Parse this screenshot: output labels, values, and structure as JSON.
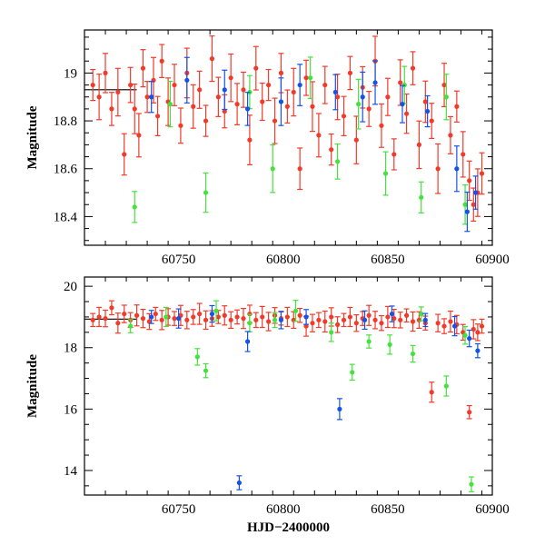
{
  "chart_data": [
    {
      "type": "scatter",
      "title": "",
      "xlabel": "",
      "ylabel": "Magnitude",
      "xlim": [
        60705,
        60900
      ],
      "ylim": [
        19.18,
        18.28
      ],
      "y_inverted": true,
      "xticks": [
        60750,
        60800,
        60850,
        60900
      ],
      "yticks": [
        18.4,
        18.6,
        18.8,
        19
      ],
      "grid": false,
      "colors": {
        "red": "#f23a2a",
        "green": "#44e23c",
        "blue": "#1453e8",
        "black": "#000000"
      },
      "reference_line": {
        "color": "black",
        "x": [
          60705,
          60730
        ],
        "y": 18.93
      },
      "series": [
        {
          "color": "red",
          "x": [
            60709,
            60712,
            60715,
            60718,
            60721,
            60724,
            60727,
            60729,
            60731,
            60733,
            60735,
            60738,
            60740,
            60742,
            60745,
            60748,
            60751,
            60754,
            60757,
            60760,
            60763,
            60766,
            60769,
            60772,
            60775,
            60778,
            60781,
            60784,
            60787,
            60790,
            60793,
            60796,
            60799,
            60802,
            60805,
            60808,
            60811,
            60814,
            60817,
            60820,
            60823,
            60826,
            60829,
            60832,
            60835,
            60838,
            60841,
            60844,
            60847,
            60850,
            60853,
            60856,
            60859,
            60862,
            60865,
            60868,
            60871,
            60874,
            60877,
            60880,
            60883,
            60886,
            60889,
            60891,
            60893,
            60895
          ],
          "y": [
            18.95,
            18.9,
            19.0,
            18.85,
            18.92,
            18.66,
            18.95,
            18.85,
            18.74,
            19.02,
            18.9,
            18.97,
            18.82,
            19.05,
            18.88,
            18.95,
            18.78,
            19.0,
            18.86,
            18.93,
            18.8,
            19.06,
            18.9,
            18.84,
            18.98,
            18.87,
            18.93,
            18.72,
            19.02,
            18.88,
            18.95,
            18.8,
            19.0,
            18.86,
            18.92,
            18.6,
            18.98,
            18.86,
            18.74,
            18.95,
            18.68,
            18.9,
            18.82,
            19.0,
            18.72,
            18.94,
            18.85,
            19.05,
            18.78,
            18.9,
            18.66,
            18.96,
            18.83,
            19.02,
            18.7,
            18.88,
            18.8,
            18.6,
            18.95,
            18.74,
            18.86,
            18.66,
            18.55,
            18.45,
            18.5,
            18.58
          ]
        },
        {
          "color": "green",
          "x": [
            60729,
            60746,
            60763,
            60784,
            60795,
            60813,
            60826,
            60836,
            60849,
            60858,
            60866,
            60878,
            60887
          ],
          "y": [
            18.44,
            18.87,
            18.5,
            18.92,
            18.6,
            18.98,
            18.63,
            18.87,
            18.58,
            18.95,
            18.48,
            18.9,
            18.45
          ]
        },
        {
          "color": "blue",
          "x": [
            60737,
            60754,
            60772,
            60783,
            60799,
            60808,
            60825,
            60838,
            60844,
            60857,
            60869,
            60883,
            60888,
            60892
          ],
          "y": [
            18.9,
            18.97,
            18.93,
            18.85,
            18.88,
            18.95,
            18.92,
            18.9,
            18.96,
            18.87,
            18.84,
            18.6,
            18.42,
            18.5
          ]
        }
      ]
    },
    {
      "type": "scatter",
      "title": "",
      "xlabel": "HJD−2400000",
      "ylabel": "Magnitude",
      "xlim": [
        60705,
        60900
      ],
      "ylim": [
        20.3,
        13.2
      ],
      "y_inverted": true,
      "xticks": [
        60750,
        60800,
        60850,
        60900
      ],
      "yticks": [
        14,
        16,
        18,
        20
      ],
      "grid": false,
      "colors": {
        "red": "#f23a2a",
        "green": "#44e23c",
        "blue": "#1453e8",
        "black": "#000000"
      },
      "reference_line": {
        "color": "black",
        "x": [
          60705,
          60730
        ],
        "y": 18.93
      },
      "series": [
        {
          "color": "red",
          "x": [
            60709,
            60712,
            60715,
            60718,
            60721,
            60724,
            60727,
            60730,
            60733,
            60736,
            60739,
            60742,
            60745,
            60748,
            60751,
            60754,
            60757,
            60760,
            60763,
            60766,
            60769,
            60772,
            60775,
            60778,
            60781,
            60784,
            60787,
            60790,
            60793,
            60796,
            60799,
            60802,
            60805,
            60808,
            60811,
            60814,
            60817,
            60820,
            60823,
            60826,
            60829,
            60832,
            60835,
            60838,
            60841,
            60844,
            60847,
            60850,
            60853,
            60856,
            60859,
            60862,
            60865,
            60868,
            60871,
            60874,
            60877,
            60880,
            60883,
            60886,
            60889,
            60891,
            60893,
            60895
          ],
          "y": [
            18.9,
            19.0,
            18.95,
            19.3,
            18.8,
            19.1,
            18.9,
            19.05,
            18.95,
            18.85,
            19.1,
            18.9,
            19.0,
            18.95,
            19.05,
            18.9,
            19.0,
            19.1,
            18.9,
            18.95,
            19.0,
            19.05,
            18.9,
            19.0,
            18.95,
            19.1,
            18.9,
            19.0,
            18.85,
            19.05,
            18.95,
            19.0,
            18.9,
            19.05,
            18.7,
            18.8,
            18.9,
            18.85,
            19.0,
            18.75,
            18.9,
            19.0,
            18.8,
            18.95,
            19.05,
            18.9,
            18.8,
            19.0,
            18.95,
            18.9,
            19.05,
            18.85,
            18.9,
            18.8,
            16.55,
            18.8,
            18.7,
            18.85,
            18.75,
            18.5,
            15.9,
            18.6,
            18.5,
            18.7
          ]
        },
        {
          "color": "green",
          "x": [
            60727,
            60744,
            60759,
            60763,
            60768,
            60784,
            60796,
            60806,
            60823,
            60833,
            60841,
            60851,
            60862,
            60866,
            60878,
            60887,
            60890
          ],
          "y": [
            18.7,
            19.0,
            17.7,
            17.25,
            19.2,
            18.8,
            18.9,
            19.2,
            18.5,
            17.2,
            18.2,
            18.1,
            17.8,
            19.1,
            16.75,
            18.4,
            13.55
          ]
        },
        {
          "color": "blue",
          "x": [
            60737,
            60750,
            60766,
            60779,
            60783,
            60799,
            60811,
            60827,
            60839,
            60852,
            60868,
            60882,
            60889,
            60893
          ],
          "y": [
            19.0,
            18.95,
            19.1,
            13.6,
            18.2,
            18.9,
            19.0,
            16.0,
            18.9,
            19.1,
            18.9,
            18.7,
            18.3,
            17.9
          ]
        }
      ]
    }
  ]
}
